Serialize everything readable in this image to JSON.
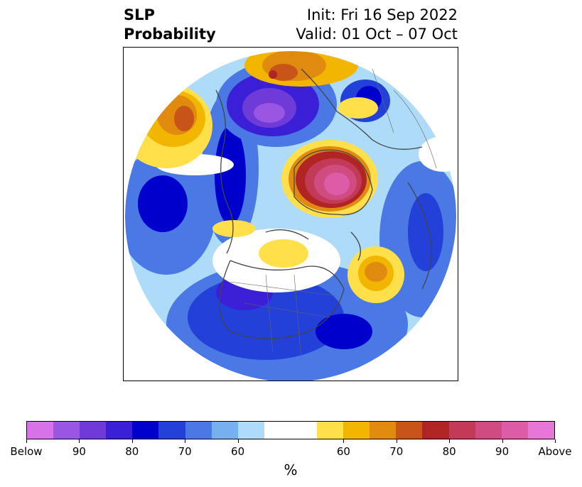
{
  "title": {
    "left_line1": "SLP",
    "left_line2": "Probability",
    "right_line1": "Init: Fri 16 Sep 2022",
    "right_line2": "Valid: 01 Oct – 07 Oct"
  },
  "colorbar": {
    "colors": [
      "#d872e8",
      "#9b55e3",
      "#6e3ad8",
      "#3a1fd6",
      "#0000cd",
      "#2340d8",
      "#4a78e4",
      "#76b0f0",
      "#aedcf8",
      "#ffffff",
      "#ffffff",
      "#ffe04a",
      "#f2b600",
      "#e08a10",
      "#c85418",
      "#b02424",
      "#c23a58",
      "#d04c80",
      "#dc5ca8",
      "#e676d8"
    ],
    "tick_labels": [
      "Below",
      "90",
      "80",
      "70",
      "60",
      "60",
      "70",
      "80",
      "90",
      "Above"
    ],
    "unit_label": "%"
  }
}
